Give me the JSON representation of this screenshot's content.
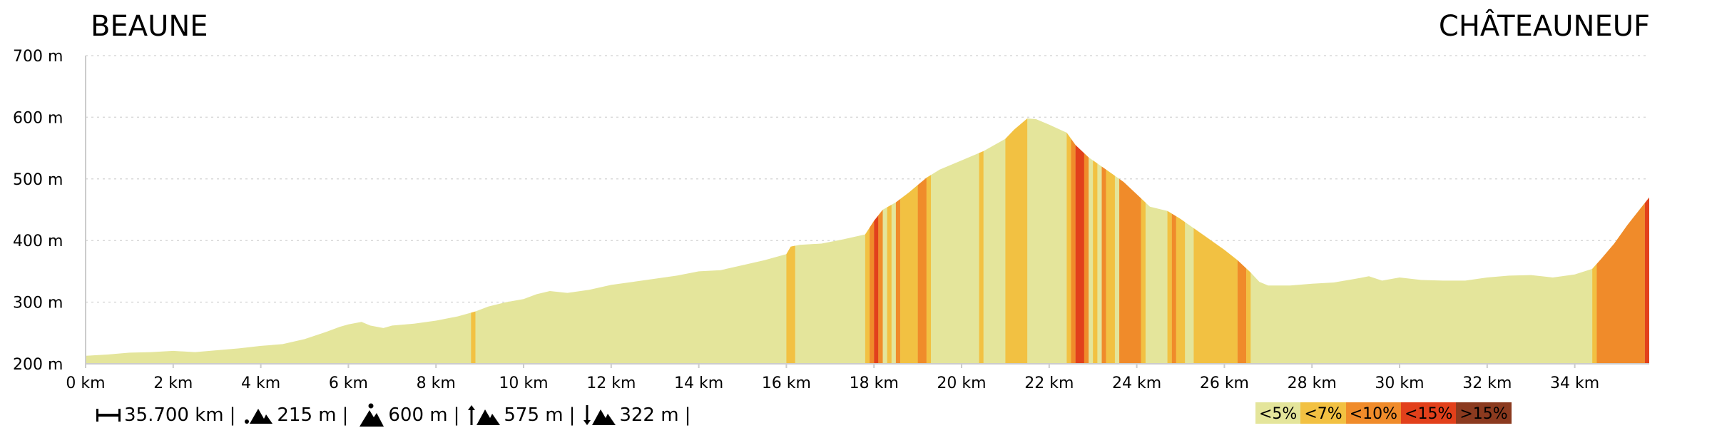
{
  "chart_data": {
    "type": "area",
    "title": "",
    "start_place": "BEAUNE",
    "end_place": "CHÂTEAUNEUF",
    "x_unit": "km",
    "y_unit": "m",
    "xlim": [
      0,
      35.7
    ],
    "ylim": [
      200,
      700
    ],
    "x_ticks": [
      0,
      2,
      4,
      6,
      8,
      10,
      12,
      14,
      16,
      18,
      20,
      22,
      24,
      26,
      28,
      30,
      32,
      34
    ],
    "x_tick_labels": [
      "0 km",
      "2 km",
      "4 km",
      "6 km",
      "8 km",
      "10 km",
      "12 km",
      "14 km",
      "16 km",
      "18 km",
      "20 km",
      "22 km",
      "24 km",
      "26 km",
      "28 km",
      "30 km",
      "32 km",
      "34 km"
    ],
    "y_ticks": [
      200,
      300,
      400,
      500,
      600,
      700
    ],
    "y_tick_labels": [
      "200 m",
      "300 m",
      "400 m",
      "500 m",
      "600 m",
      "700 m"
    ],
    "grid": "horizontal-dotted",
    "profile": [
      [
        0,
        213
      ],
      [
        0.5,
        215
      ],
      [
        1,
        218
      ],
      [
        1.5,
        219
      ],
      [
        2,
        221
      ],
      [
        2.5,
        219
      ],
      [
        3,
        222
      ],
      [
        3.5,
        225
      ],
      [
        4,
        229
      ],
      [
        4.5,
        232
      ],
      [
        5,
        240
      ],
      [
        5.5,
        252
      ],
      [
        5.8,
        260
      ],
      [
        6,
        264
      ],
      [
        6.3,
        268
      ],
      [
        6.5,
        262
      ],
      [
        6.8,
        258
      ],
      [
        7,
        262
      ],
      [
        7.5,
        265
      ],
      [
        8,
        270
      ],
      [
        8.5,
        277
      ],
      [
        8.9,
        285
      ],
      [
        9.2,
        293
      ],
      [
        9.6,
        300
      ],
      [
        10,
        305
      ],
      [
        10.3,
        313
      ],
      [
        10.6,
        318
      ],
      [
        11,
        315
      ],
      [
        11.5,
        320
      ],
      [
        12,
        328
      ],
      [
        12.5,
        333
      ],
      [
        13,
        338
      ],
      [
        13.5,
        343
      ],
      [
        14,
        350
      ],
      [
        14.5,
        352
      ],
      [
        15,
        360
      ],
      [
        15.5,
        368
      ],
      [
        16,
        378
      ],
      [
        16.1,
        390
      ],
      [
        16.3,
        393
      ],
      [
        16.8,
        395
      ],
      [
        17.3,
        402
      ],
      [
        17.8,
        410
      ],
      [
        18,
        432
      ],
      [
        18.2,
        450
      ],
      [
        18.5,
        462
      ],
      [
        18.8,
        478
      ],
      [
        19,
        490
      ],
      [
        19.2,
        502
      ],
      [
        19.5,
        515
      ],
      [
        20,
        530
      ],
      [
        20.5,
        545
      ],
      [
        21,
        565
      ],
      [
        21.2,
        580
      ],
      [
        21.5,
        598
      ],
      [
        21.7,
        597
      ],
      [
        22,
        588
      ],
      [
        22.4,
        575
      ],
      [
        22.6,
        555
      ],
      [
        22.9,
        535
      ],
      [
        23.3,
        515
      ],
      [
        23.7,
        495
      ],
      [
        24,
        475
      ],
      [
        24.3,
        455
      ],
      [
        24.7,
        448
      ],
      [
        25,
        435
      ],
      [
        25.3,
        420
      ],
      [
        25.6,
        405
      ],
      [
        26,
        385
      ],
      [
        26.3,
        368
      ],
      [
        26.6,
        348
      ],
      [
        26.8,
        333
      ],
      [
        27,
        327
      ],
      [
        27.5,
        327
      ],
      [
        28,
        330
      ],
      [
        28.5,
        332
      ],
      [
        29,
        338
      ],
      [
        29.3,
        342
      ],
      [
        29.6,
        335
      ],
      [
        30,
        340
      ],
      [
        30.5,
        336
      ],
      [
        31,
        335
      ],
      [
        31.5,
        335
      ],
      [
        32,
        340
      ],
      [
        32.5,
        343
      ],
      [
        33,
        344
      ],
      [
        33.5,
        340
      ],
      [
        34,
        345
      ],
      [
        34.4,
        354
      ],
      [
        34.6,
        370
      ],
      [
        34.9,
        395
      ],
      [
        35.2,
        425
      ],
      [
        35.5,
        452
      ],
      [
        35.7,
        470
      ]
    ],
    "grade_colors": {
      "lt5": "#e4e59b",
      "lt7": "#f2c142",
      "lt10": "#f08b2a",
      "lt15": "#e2401b",
      "gt15": "#8b3a1f"
    },
    "grade_bands": [
      {
        "from": 8.8,
        "to": 8.9,
        "grade": "lt7"
      },
      {
        "from": 16.0,
        "to": 16.2,
        "grade": "lt7"
      },
      {
        "from": 17.8,
        "to": 17.9,
        "grade": "lt7"
      },
      {
        "from": 17.9,
        "to": 18.0,
        "grade": "lt10"
      },
      {
        "from": 18.0,
        "to": 18.1,
        "grade": "lt15"
      },
      {
        "from": 18.1,
        "to": 18.2,
        "grade": "lt10"
      },
      {
        "from": 18.3,
        "to": 18.4,
        "grade": "lt7"
      },
      {
        "from": 18.5,
        "to": 18.6,
        "grade": "lt10"
      },
      {
        "from": 18.6,
        "to": 19.0,
        "grade": "lt7"
      },
      {
        "from": 19.0,
        "to": 19.2,
        "grade": "lt10"
      },
      {
        "from": 19.2,
        "to": 19.3,
        "grade": "lt7"
      },
      {
        "from": 20.4,
        "to": 20.5,
        "grade": "lt7"
      },
      {
        "from": 21.0,
        "to": 21.5,
        "grade": "lt7"
      },
      {
        "from": 22.4,
        "to": 22.5,
        "grade": "lt7"
      },
      {
        "from": 22.5,
        "to": 22.6,
        "grade": "lt10"
      },
      {
        "from": 22.6,
        "to": 22.8,
        "grade": "lt15"
      },
      {
        "from": 22.8,
        "to": 22.9,
        "grade": "lt10"
      },
      {
        "from": 23.0,
        "to": 23.1,
        "grade": "lt7"
      },
      {
        "from": 23.2,
        "to": 23.3,
        "grade": "lt10"
      },
      {
        "from": 23.3,
        "to": 23.5,
        "grade": "lt7"
      },
      {
        "from": 23.6,
        "to": 24.1,
        "grade": "lt10"
      },
      {
        "from": 24.1,
        "to": 24.2,
        "grade": "lt7"
      },
      {
        "from": 24.7,
        "to": 24.8,
        "grade": "lt7"
      },
      {
        "from": 24.8,
        "to": 24.9,
        "grade": "lt10"
      },
      {
        "from": 24.9,
        "to": 25.1,
        "grade": "lt7"
      },
      {
        "from": 25.3,
        "to": 26.3,
        "grade": "lt7"
      },
      {
        "from": 26.3,
        "to": 26.5,
        "grade": "lt10"
      },
      {
        "from": 26.5,
        "to": 26.6,
        "grade": "lt7"
      },
      {
        "from": 34.4,
        "to": 34.5,
        "grade": "lt7"
      },
      {
        "from": 34.5,
        "to": 35.6,
        "grade": "lt10"
      },
      {
        "from": 35.6,
        "to": 35.7,
        "grade": "lt15"
      }
    ],
    "legend": [
      {
        "label": "<5%",
        "grade": "lt5"
      },
      {
        "label": "<7%",
        "grade": "lt7"
      },
      {
        "label": "<10%",
        "grade": "lt10"
      },
      {
        "label": "<15%",
        "grade": "lt15"
      },
      {
        "label": ">15%",
        "grade": "gt15"
      }
    ],
    "legend_placement": "bottom-right"
  },
  "stats": {
    "distance": "35.700 km",
    "min_altitude": "215 m",
    "max_altitude": "600 m",
    "ascent": "575 m",
    "descent": "322 m",
    "separator": "|"
  },
  "icons": {
    "distance": "distance-icon",
    "min_altitude": "min-altitude-icon",
    "max_altitude": "max-altitude-icon",
    "ascent": "ascent-icon",
    "descent": "descent-icon"
  }
}
